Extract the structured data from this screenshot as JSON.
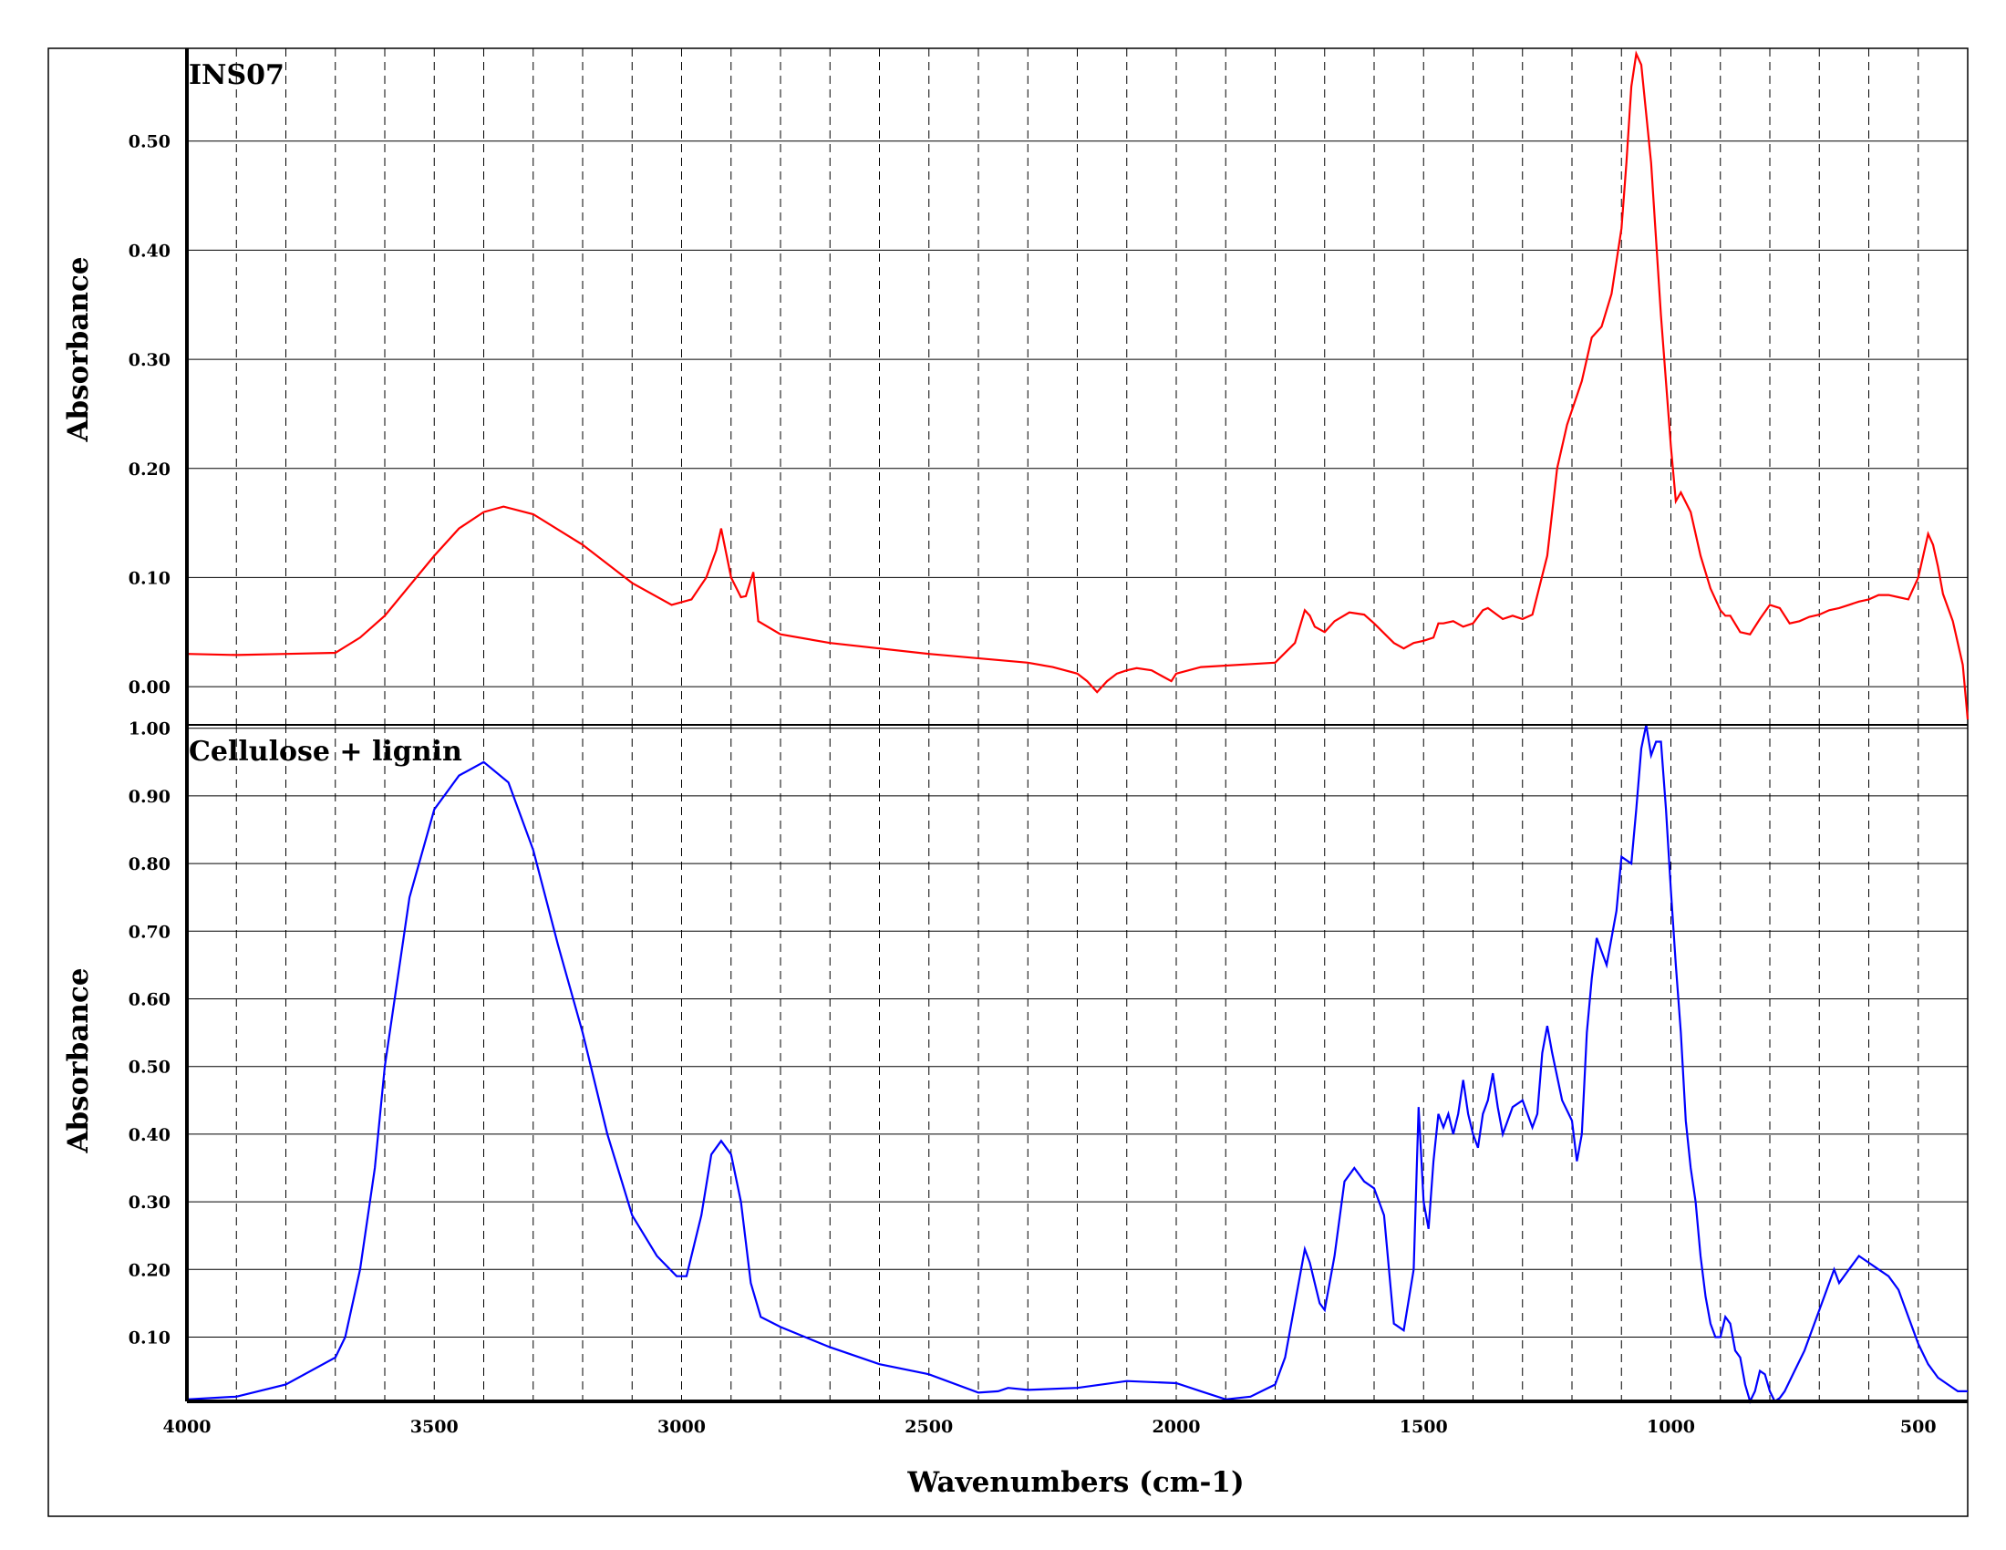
{
  "chart_data": [
    {
      "type": "line",
      "title": "INS07",
      "xlabel": "Wavenumbers (cm-1)",
      "ylabel": "Absorbance",
      "xlim": [
        4000,
        400
      ],
      "x_reversed": true,
      "ylim": [
        -0.035,
        0.585
      ],
      "yticks": [
        0.0,
        0.1,
        0.2,
        0.3,
        0.4,
        0.5
      ],
      "ytick_labels": [
        "0.00",
        "0.10",
        "0.20",
        "0.30",
        "0.40",
        "0.50"
      ],
      "xticks": [
        4000,
        3500,
        3000,
        2500,
        2000,
        1500,
        1000,
        500
      ],
      "xtick_labels": [
        "4000",
        "3500",
        "3000",
        "2500",
        "2000",
        "1500",
        "1000",
        "500"
      ],
      "grid": "horizontal solid, vertical dashed every 100 cm-1",
      "color": "#ff0000",
      "series": [
        {
          "x": [
            4000,
            3900,
            3800,
            3700,
            3650,
            3600,
            3500,
            3450,
            3400,
            3360,
            3300,
            3200,
            3100,
            3020,
            2980,
            2950,
            2930,
            2920,
            2900,
            2880,
            2870,
            2855,
            2845,
            2800,
            2700,
            2500,
            2300,
            2250,
            2200,
            2180,
            2160,
            2150,
            2140,
            2120,
            2100,
            2080,
            2050,
            2030,
            2010,
            2000,
            1950,
            1800,
            1760,
            1740,
            1730,
            1720,
            1700,
            1680,
            1650,
            1620,
            1600,
            1560,
            1540,
            1520,
            1500,
            1480,
            1470,
            1460,
            1440,
            1420,
            1400,
            1380,
            1370,
            1340,
            1320,
            1300,
            1280,
            1250,
            1230,
            1210,
            1180,
            1160,
            1140,
            1120,
            1100,
            1090,
            1080,
            1070,
            1060,
            1040,
            1020,
            1000,
            990,
            980,
            960,
            940,
            920,
            900,
            890,
            880,
            860,
            840,
            820,
            800,
            780,
            760,
            740,
            720,
            700,
            680,
            660,
            640,
            620,
            600,
            580,
            560,
            540,
            520,
            500,
            490,
            480,
            470,
            460,
            450,
            430,
            410,
            400
          ],
          "y": [
            0.03,
            0.029,
            0.03,
            0.031,
            0.045,
            0.065,
            0.12,
            0.145,
            0.16,
            0.165,
            0.158,
            0.13,
            0.095,
            0.075,
            0.08,
            0.1,
            0.125,
            0.145,
            0.1,
            0.082,
            0.083,
            0.105,
            0.06,
            0.048,
            0.04,
            0.03,
            0.022,
            0.018,
            0.012,
            0.005,
            -0.005,
            0.0,
            0.005,
            0.012,
            0.015,
            0.017,
            0.015,
            0.01,
            0.005,
            0.012,
            0.018,
            0.022,
            0.04,
            0.07,
            0.065,
            0.055,
            0.05,
            0.06,
            0.068,
            0.066,
            0.058,
            0.04,
            0.035,
            0.04,
            0.042,
            0.045,
            0.058,
            0.058,
            0.06,
            0.055,
            0.058,
            0.07,
            0.072,
            0.062,
            0.065,
            0.062,
            0.066,
            0.12,
            0.2,
            0.24,
            0.28,
            0.32,
            0.33,
            0.36,
            0.42,
            0.48,
            0.55,
            0.58,
            0.57,
            0.48,
            0.34,
            0.22,
            0.17,
            0.178,
            0.16,
            0.12,
            0.09,
            0.07,
            0.065,
            0.065,
            0.05,
            0.048,
            0.062,
            0.075,
            0.072,
            0.058,
            0.06,
            0.064,
            0.066,
            0.07,
            0.072,
            0.075,
            0.078,
            0.08,
            0.084,
            0.084,
            0.082,
            0.08,
            0.1,
            0.12,
            0.14,
            0.13,
            0.11,
            0.085,
            0.06,
            0.02,
            -0.03
          ]
        }
      ]
    },
    {
      "type": "line",
      "title": "Cellulose + lignin",
      "xlabel": "Wavenumbers (cm-1)",
      "ylabel": "Absorbance",
      "xlim": [
        4000,
        400
      ],
      "x_reversed": true,
      "ylim": [
        0.005,
        1.005
      ],
      "yticks": [
        0.1,
        0.2,
        0.3,
        0.4,
        0.5,
        0.6,
        0.7,
        0.8,
        0.9,
        1.0
      ],
      "ytick_labels": [
        "0.10",
        "0.20",
        "0.30",
        "0.40",
        "0.50",
        "0.60",
        "0.70",
        "0.80",
        "0.90",
        "1.00"
      ],
      "xticks": [
        4000,
        3500,
        3000,
        2500,
        2000,
        1500,
        1000,
        500
      ],
      "xtick_labels": [
        "4000",
        "3500",
        "3000",
        "2500",
        "2000",
        "1500",
        "1000",
        "500"
      ],
      "grid": "horizontal solid, vertical dashed every 100 cm-1",
      "color": "#0000ff",
      "series": [
        {
          "x": [
            4000,
            3900,
            3800,
            3700,
            3680,
            3650,
            3620,
            3600,
            3550,
            3500,
            3450,
            3400,
            3350,
            3300,
            3250,
            3200,
            3150,
            3100,
            3050,
            3010,
            2990,
            2960,
            2940,
            2920,
            2900,
            2880,
            2860,
            2840,
            2800,
            2750,
            2700,
            2600,
            2500,
            2400,
            2360,
            2340,
            2300,
            2200,
            2100,
            2000,
            1950,
            1900,
            1850,
            1800,
            1780,
            1760,
            1740,
            1730,
            1720,
            1710,
            1700,
            1680,
            1660,
            1640,
            1620,
            1600,
            1580,
            1570,
            1560,
            1540,
            1520,
            1510,
            1500,
            1490,
            1480,
            1470,
            1460,
            1450,
            1440,
            1430,
            1420,
            1410,
            1400,
            1390,
            1380,
            1370,
            1360,
            1350,
            1340,
            1320,
            1300,
            1280,
            1270,
            1260,
            1250,
            1240,
            1220,
            1200,
            1190,
            1180,
            1170,
            1160,
            1150,
            1140,
            1130,
            1110,
            1100,
            1080,
            1070,
            1060,
            1050,
            1040,
            1030,
            1020,
            1010,
            1000,
            990,
            980,
            970,
            960,
            950,
            940,
            930,
            920,
            910,
            900,
            890,
            880,
            870,
            860,
            850,
            840,
            830,
            820,
            810,
            800,
            790,
            780,
            770,
            750,
            730,
            710,
            690,
            670,
            660,
            640,
            620,
            600,
            580,
            560,
            540,
            520,
            500,
            480,
            460,
            440,
            420,
            400
          ],
          "y": [
            0.008,
            0.012,
            0.03,
            0.07,
            0.1,
            0.2,
            0.35,
            0.5,
            0.75,
            0.88,
            0.93,
            0.95,
            0.92,
            0.82,
            0.68,
            0.55,
            0.4,
            0.28,
            0.22,
            0.19,
            0.19,
            0.28,
            0.37,
            0.39,
            0.37,
            0.3,
            0.18,
            0.13,
            0.115,
            0.1,
            0.085,
            0.06,
            0.045,
            0.018,
            0.02,
            0.025,
            0.022,
            0.025,
            0.035,
            0.032,
            0.02,
            0.008,
            0.012,
            0.03,
            0.07,
            0.15,
            0.23,
            0.21,
            0.18,
            0.15,
            0.14,
            0.22,
            0.33,
            0.35,
            0.33,
            0.32,
            0.28,
            0.2,
            0.12,
            0.11,
            0.2,
            0.44,
            0.3,
            0.26,
            0.36,
            0.43,
            0.41,
            0.43,
            0.4,
            0.43,
            0.48,
            0.43,
            0.4,
            0.38,
            0.43,
            0.45,
            0.49,
            0.44,
            0.4,
            0.44,
            0.45,
            0.41,
            0.43,
            0.52,
            0.56,
            0.52,
            0.45,
            0.42,
            0.36,
            0.4,
            0.55,
            0.63,
            0.69,
            0.67,
            0.65,
            0.73,
            0.81,
            0.8,
            0.88,
            0.97,
            1.02,
            0.96,
            0.98,
            0.98,
            0.88,
            0.76,
            0.65,
            0.55,
            0.42,
            0.35,
            0.3,
            0.22,
            0.16,
            0.12,
            0.1,
            0.1,
            0.13,
            0.12,
            0.08,
            0.07,
            0.03,
            0.005,
            0.02,
            0.05,
            0.045,
            0.02,
            0.005,
            0.01,
            0.02,
            0.05,
            0.08,
            0.12,
            0.16,
            0.2,
            0.18,
            0.2,
            0.22,
            0.21,
            0.2,
            0.19,
            0.17,
            0.13,
            0.09,
            0.06,
            0.04,
            0.03,
            0.02,
            0.02
          ]
        }
      ]
    }
  ]
}
